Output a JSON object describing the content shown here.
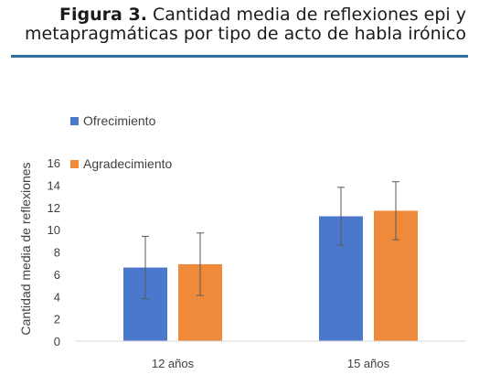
{
  "caption": {
    "label": "Figura 3.",
    "text_line1": " Cantidad media de reflexiones epi y",
    "text_line2": "metapragmáticas por tipo de acto de habla irónico"
  },
  "colors": {
    "rule": "#2f6f9e",
    "series": [
      "#4a78cc",
      "#ef8a3a"
    ],
    "axis": "#d9d9d9",
    "error_bar": "#595959"
  },
  "chart_data": {
    "type": "bar",
    "title": "",
    "xlabel": "",
    "ylabel": "Cantidad media de reflexiones",
    "ylim": [
      0,
      16
    ],
    "yticks": [
      0,
      2,
      4,
      6,
      8,
      10,
      12,
      14,
      16
    ],
    "grid": false,
    "legend_position": "top-left",
    "categories": [
      "12 años",
      "15 años"
    ],
    "series": [
      {
        "name": "Ofrecimiento",
        "values": [
          6.6,
          11.2
        ],
        "error": [
          2.8,
          2.6
        ]
      },
      {
        "name": "Agradecimiento",
        "values": [
          6.9,
          11.7
        ],
        "error": [
          2.8,
          2.6
        ]
      }
    ]
  }
}
